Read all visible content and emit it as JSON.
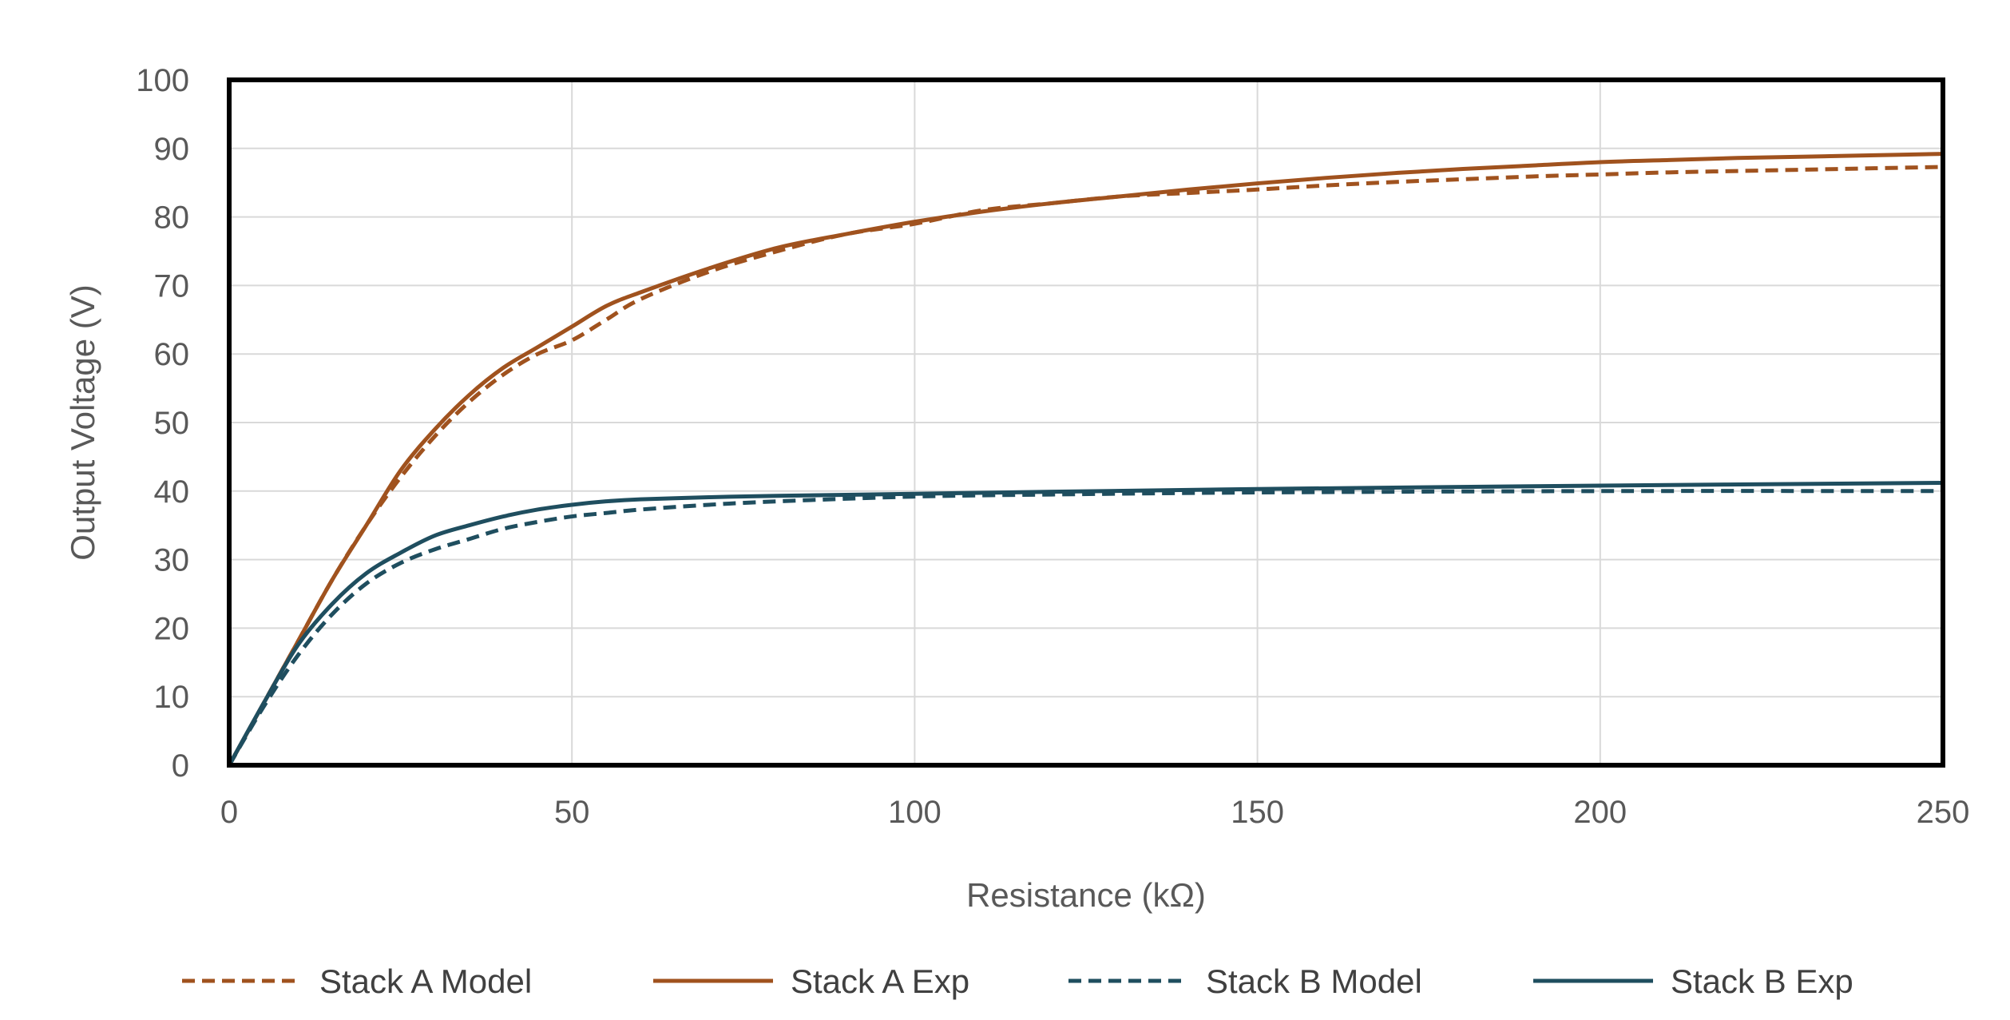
{
  "chart_data": {
    "type": "line",
    "title": "",
    "xlabel": "Resistance (kΩ)",
    "ylabel": "Output Voltage (V)",
    "xlim": [
      0,
      250
    ],
    "ylim": [
      0,
      100
    ],
    "xticks": [
      "0",
      "50",
      "100",
      "150",
      "200",
      "250"
    ],
    "yticks": [
      "0",
      "10",
      "20",
      "30",
      "40",
      "50",
      "60",
      "70",
      "80",
      "90",
      "100"
    ],
    "grid": true,
    "legend_position": "bottom",
    "series": [
      {
        "name": "Stack A Model",
        "color": "#A0521E",
        "style": "dashed",
        "x": [
          0,
          5,
          10,
          15,
          20,
          25,
          30,
          35,
          40,
          45,
          50,
          55,
          60,
          70,
          80,
          90,
          100,
          110,
          120,
          130,
          140,
          150,
          160,
          170,
          180,
          190,
          200,
          210,
          220,
          230,
          240,
          250
        ],
        "y": [
          0,
          9,
          18,
          27,
          35,
          42,
          48,
          53,
          57,
          60,
          62,
          65,
          68,
          72,
          75,
          77.5,
          79,
          81,
          82,
          83,
          83.5,
          84,
          84.6,
          85.1,
          85.5,
          85.9,
          86.2,
          86.5,
          86.7,
          86.9,
          87.1,
          87.3
        ]
      },
      {
        "name": "Stack A Exp",
        "color": "#A0521E",
        "style": "solid",
        "x": [
          0,
          5,
          10,
          15,
          20,
          25,
          30,
          35,
          40,
          45,
          50,
          55,
          60,
          70,
          80,
          90,
          100,
          110,
          120,
          130,
          140,
          150,
          160,
          170,
          180,
          190,
          200,
          210,
          220,
          230,
          240,
          250
        ],
        "y": [
          0,
          9,
          18,
          27,
          35,
          43,
          49,
          54,
          58,
          61,
          64,
          67,
          69,
          72.5,
          75.5,
          77.5,
          79.3,
          80.8,
          82,
          83,
          84,
          84.9,
          85.7,
          86.4,
          87,
          87.5,
          88,
          88.3,
          88.6,
          88.8,
          89,
          89.2
        ]
      },
      {
        "name": "Stack B Model",
        "color": "#1F4E5F",
        "style": "dashed",
        "x": [
          0,
          5,
          10,
          15,
          20,
          25,
          30,
          35,
          40,
          45,
          50,
          55,
          60,
          70,
          80,
          100,
          120,
          150,
          200,
          250
        ],
        "y": [
          0,
          8.5,
          16,
          22,
          26.5,
          29.5,
          31.5,
          33,
          34.5,
          35.5,
          36.3,
          36.8,
          37.3,
          38,
          38.5,
          39.2,
          39.5,
          39.8,
          40,
          40
        ]
      },
      {
        "name": "Stack B Exp",
        "color": "#1F4E5F",
        "style": "solid",
        "x": [
          0,
          5,
          10,
          15,
          20,
          25,
          30,
          35,
          40,
          45,
          50,
          55,
          60,
          70,
          80,
          100,
          120,
          150,
          200,
          250
        ],
        "y": [
          0,
          9,
          17.5,
          23.5,
          28,
          31,
          33.5,
          35,
          36.3,
          37.3,
          38,
          38.5,
          38.8,
          39.1,
          39.3,
          39.6,
          39.9,
          40.3,
          40.8,
          41.2
        ]
      }
    ]
  }
}
